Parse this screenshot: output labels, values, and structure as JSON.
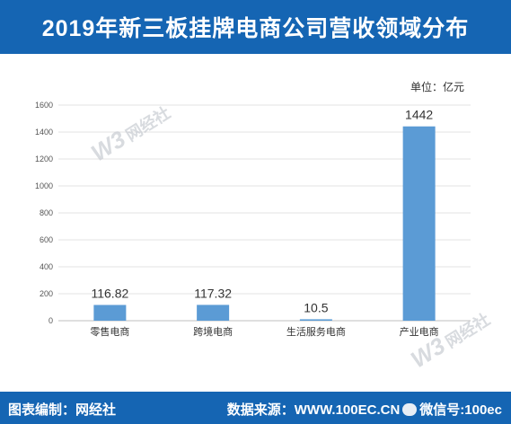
{
  "header": {
    "title": "2019年新三板挂牌电商公司营收领域分布"
  },
  "unit_label": "单位：亿元",
  "watermark": {
    "logo": "W3",
    "name": "网经社"
  },
  "footer": {
    "left": "图表编制：网经社",
    "right_label": "数据来源：",
    "right_value": "WWW.100EC.CN",
    "wechat_label": "微信号:100ec"
  },
  "chart_data": {
    "type": "bar",
    "title": "2019年新三板挂牌电商公司营收领域分布",
    "xlabel": "",
    "ylabel": "",
    "unit": "单位：亿元",
    "categories": [
      "零售电商",
      "跨境电商",
      "生活服务电商",
      "产业电商"
    ],
    "values": [
      116.82,
      117.32,
      10.5,
      1442
    ],
    "value_labels": [
      "116.82",
      "117.32",
      "10.5",
      "1442"
    ],
    "ylim": [
      0,
      1600
    ],
    "yticks": [
      0,
      200,
      400,
      600,
      800,
      1000,
      1200,
      1400,
      1600
    ],
    "grid": true,
    "legend": "none",
    "bar_color": "#5b9bd5"
  }
}
